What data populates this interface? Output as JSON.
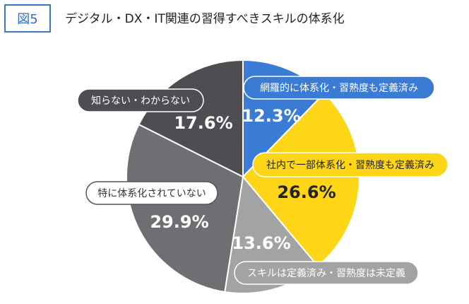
{
  "figure_label": "図5",
  "title": "デジタル・DX・IT関連の習得すべきスキルの体系化",
  "chart_data": {
    "type": "pie",
    "title": "デジタル・DX・IT関連の習得すべきスキルの体系化",
    "start": "12 o'clock",
    "direction": "clockwise",
    "series": [
      {
        "name": "網羅的に体系化・習熟度も定義済み",
        "value": 12.3,
        "value_label": "12.3%",
        "color": "#3a7bd5"
      },
      {
        "name": "社内で一部体系化・習熟度も定義済み",
        "value": 26.6,
        "value_label": "26.6%",
        "color": "#ffd617"
      },
      {
        "name": "スキルは定義済み・習熟度は未定義",
        "value": 13.6,
        "value_label": "13.6%",
        "color": "#a3a3a3"
      },
      {
        "name": "特に体系化されていない",
        "value": 29.9,
        "value_label": "29.9%",
        "color": "#6e6e73"
      },
      {
        "name": "知らない・わからない",
        "value": 17.6,
        "value_label": "17.6%",
        "color": "#4d4d52"
      }
    ]
  }
}
